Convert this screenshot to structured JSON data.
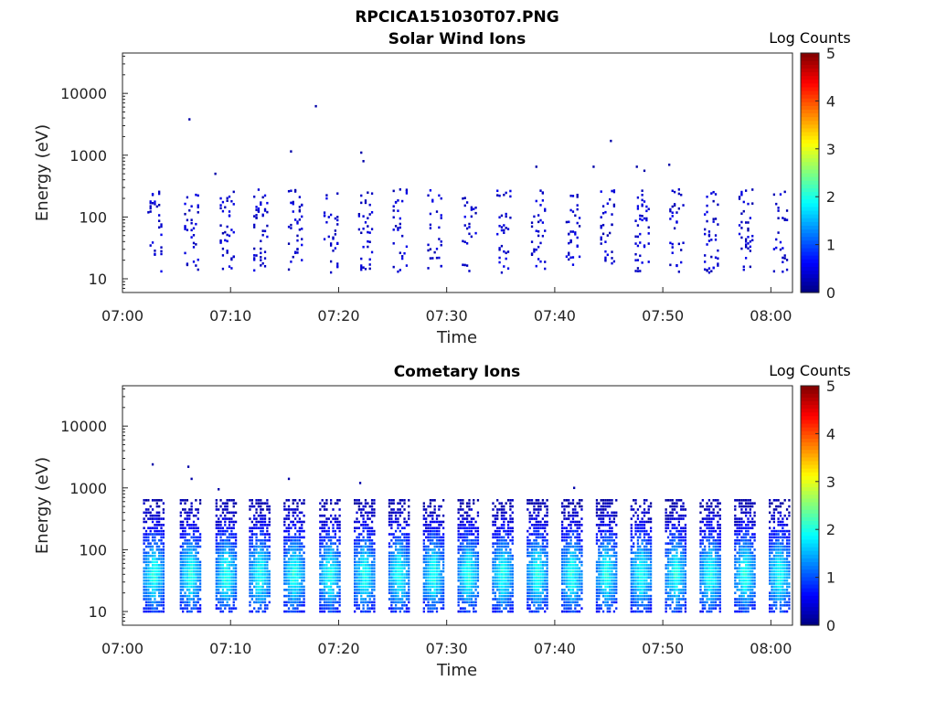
{
  "figure_title": "RPCICA151030T07.PNG",
  "colors": {
    "axis": "#262626",
    "colormap": "jet"
  },
  "chart_data": [
    {
      "type": "heatmap",
      "title": "Solar Wind Ions",
      "xlabel": "Time",
      "ylabel": "Energy (eV)",
      "x_ticks": [
        "07:00",
        "07:10",
        "07:20",
        "07:30",
        "07:40",
        "07:50",
        "08:00"
      ],
      "x_tick_minutes": [
        0,
        10,
        20,
        30,
        40,
        50,
        60
      ],
      "xlim_minutes": [
        0,
        62
      ],
      "y_ticks": [
        "10",
        "100",
        "1000",
        "10000"
      ],
      "y_tick_values": [
        10,
        100,
        1000,
        10000
      ],
      "y_scale": "log",
      "ylim": [
        6,
        45000
      ],
      "colorbar": {
        "title": "Log Counts",
        "ticks": [
          "0",
          "1",
          "2",
          "3",
          "4",
          "5"
        ],
        "range": [
          0,
          5
        ]
      },
      "scan_minutes": [
        2.8,
        6.2,
        9.5,
        12.6,
        15.8,
        19.1,
        22.3,
        25.5,
        28.7,
        31.9,
        35.1,
        38.3,
        41.5,
        44.7,
        47.9,
        51.1,
        54.3,
        57.5,
        60.7
      ],
      "typical_log_counts": 0.2,
      "sporadic_high_energy_points": [
        {
          "t": 6.1,
          "E": 3800
        },
        {
          "t": 8.5,
          "E": 500
        },
        {
          "t": 15.5,
          "E": 1150
        },
        {
          "t": 17.8,
          "E": 6200
        },
        {
          "t": 22.0,
          "E": 1100
        },
        {
          "t": 22.2,
          "E": 800
        },
        {
          "t": 38.2,
          "E": 650
        },
        {
          "t": 43.5,
          "E": 650
        },
        {
          "t": 45.1,
          "E": 1700
        },
        {
          "t": 47.5,
          "E": 650
        },
        {
          "t": 48.2,
          "E": 560
        },
        {
          "t": 50.5,
          "E": 700
        }
      ]
    },
    {
      "type": "heatmap",
      "title": "Cometary Ions",
      "xlabel": "Time",
      "ylabel": "Energy (eV)",
      "x_ticks": [
        "07:00",
        "07:10",
        "07:20",
        "07:30",
        "07:40",
        "07:50",
        "08:00"
      ],
      "x_tick_minutes": [
        0,
        10,
        20,
        30,
        40,
        50,
        60
      ],
      "xlim_minutes": [
        0,
        62
      ],
      "y_ticks": [
        "10",
        "100",
        "1000",
        "10000"
      ],
      "y_tick_values": [
        10,
        100,
        1000,
        10000
      ],
      "y_scale": "log",
      "ylim": [
        6,
        45000
      ],
      "colorbar": {
        "title": "Log Counts",
        "ticks": [
          "0",
          "1",
          "2",
          "3",
          "4",
          "5"
        ],
        "range": [
          0,
          5
        ]
      },
      "scan_minutes": [
        2.8,
        6.2,
        9.5,
        12.6,
        15.8,
        19.1,
        22.3,
        25.5,
        28.7,
        31.9,
        35.1,
        38.3,
        41.5,
        44.7,
        47.9,
        51.1,
        54.3,
        57.5,
        60.7
      ],
      "peak_energy_eV": 40,
      "peak_log_counts": 1.9,
      "energy_range_eV": [
        10,
        700
      ],
      "sporadic_high_energy_points": [
        {
          "t": 2.7,
          "E": 2400
        },
        {
          "t": 6.0,
          "E": 2200
        },
        {
          "t": 6.3,
          "E": 1400
        },
        {
          "t": 8.8,
          "E": 950
        },
        {
          "t": 15.3,
          "E": 1400
        },
        {
          "t": 21.9,
          "E": 1200
        },
        {
          "t": 41.7,
          "E": 1000
        }
      ]
    }
  ]
}
